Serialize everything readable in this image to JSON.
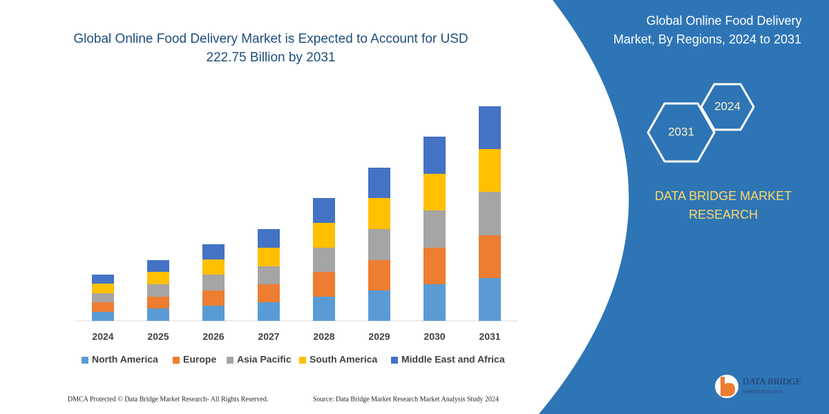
{
  "chart_data": {
    "type": "stacked-bar",
    "title": "Global Online Food Delivery Market is Expected to Account for USD",
    "title_line2": "222.75 Billion by 2031",
    "categories": [
      "2024",
      "2025",
      "2026",
      "2027",
      "2028",
      "2029",
      "2030",
      "2031"
    ],
    "series": [
      {
        "name": "North America",
        "color": "#5b9bd5",
        "values": [
          13,
          18,
          22,
          27,
          35,
          44,
          53,
          62
        ]
      },
      {
        "name": "Europe",
        "color": "#ed7d31",
        "values": [
          14,
          17,
          22,
          26,
          36,
          44,
          53,
          62
        ]
      },
      {
        "name": "Asia Pacific",
        "color": "#a5a5a5",
        "values": [
          13,
          18,
          23,
          26,
          35,
          45,
          54,
          63
        ]
      },
      {
        "name": "South America",
        "color": "#ffc000",
        "values": [
          14,
          18,
          22,
          27,
          36,
          45,
          53,
          62
        ]
      },
      {
        "name": "Middle East and Africa",
        "color": "#4472c4",
        "values": [
          13,
          17,
          22,
          27,
          36,
          44,
          54,
          62
        ]
      }
    ]
  },
  "panel": {
    "title_line1": "Global Online Food Delivery",
    "title_line2": "Market, By Regions, 2024 to 2031",
    "hex_left": "2031",
    "hex_right": "2024",
    "brand_line1": "DATA BRIDGE MARKET",
    "brand_line2": "RESEARCH"
  },
  "footer": {
    "left": "DMCA Protected © Data Bridge Market Research-  All Rights Reserved.",
    "right": "Source: Data Bridge Market Research  Market Analysis Study 2024",
    "logo_name": "DATA BRIDGE",
    "logo_tagline": "MARKET RESEARCH"
  }
}
